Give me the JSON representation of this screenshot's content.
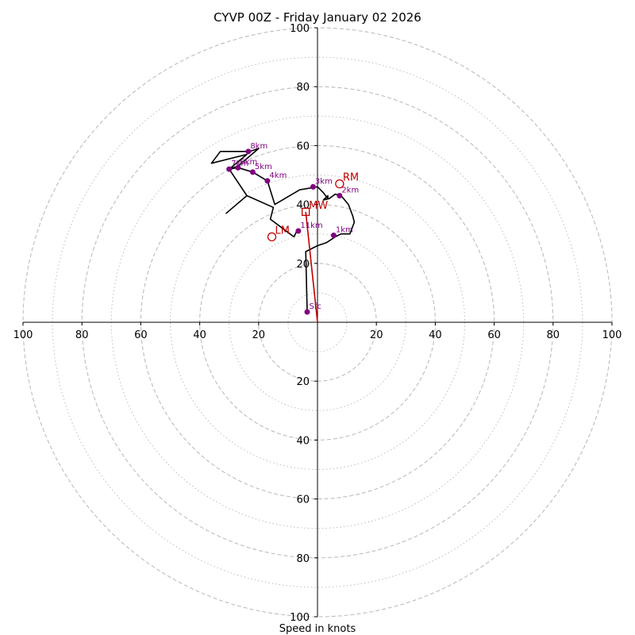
{
  "chart_data": {
    "type": "hodograph",
    "title": "CYVP 00Z - Friday January 02 2026",
    "xlabel": "Speed in knots",
    "max_speed": 100,
    "rings_major": [
      20,
      40,
      60,
      80,
      100
    ],
    "rings_minor": [
      10,
      30,
      50,
      70,
      90
    ],
    "x_tick_labels": [
      "100",
      "80",
      "60",
      "40",
      "20",
      "20",
      "40",
      "60",
      "80",
      "100"
    ],
    "y_tick_labels_upper": [
      "20",
      "40",
      "60",
      "80",
      "100"
    ],
    "y_tick_labels_lower": [
      "20",
      "40",
      "60",
      "80",
      "100"
    ],
    "hodograph_trace": [
      [
        -3.5,
        3.5
      ],
      [
        -4,
        24
      ],
      [
        0,
        26
      ],
      [
        3,
        27
      ],
      [
        6,
        29
      ],
      [
        8,
        30
      ],
      [
        11,
        30
      ],
      [
        12.5,
        34
      ],
      [
        12,
        36
      ],
      [
        10.5,
        40
      ],
      [
        8,
        43
      ],
      [
        6,
        43.5
      ],
      [
        4,
        42
      ],
      [
        2,
        41.5
      ],
      [
        3.5,
        43
      ],
      [
        3.5,
        42
      ],
      [
        2,
        44
      ],
      [
        0,
        46
      ],
      [
        -6,
        45
      ],
      [
        -14.5,
        40
      ],
      [
        -17,
        48
      ],
      [
        -22,
        51
      ],
      [
        -27,
        52.5
      ],
      [
        -30,
        52
      ],
      [
        -24,
        57
      ],
      [
        -36,
        54
      ],
      [
        -33,
        58
      ],
      [
        -23,
        58
      ],
      [
        -20,
        59
      ],
      [
        -27,
        53
      ],
      [
        -30,
        52
      ],
      [
        -24,
        43
      ],
      [
        -31,
        37
      ],
      [
        -24,
        43
      ],
      [
        -15,
        39
      ],
      [
        -16,
        35
      ],
      [
        -12,
        32
      ],
      [
        -8,
        29
      ],
      [
        -7,
        31
      ]
    ],
    "height_points": [
      {
        "label": "Sfc",
        "u": -3.5,
        "v": 3.5
      },
      {
        "label": "1km",
        "u": 5.5,
        "v": 29.5
      },
      {
        "label": "2km",
        "u": 7.5,
        "v": 43
      },
      {
        "label": "3km",
        "u": -1.5,
        "v": 46
      },
      {
        "label": "4km",
        "u": -17,
        "v": 48
      },
      {
        "label": "5km",
        "u": -22,
        "v": 51
      },
      {
        "label": "6km",
        "u": -27,
        "v": 52.5
      },
      {
        "label": "7km",
        "u": -30,
        "v": 52
      },
      {
        "label": "8km",
        "u": -23.5,
        "v": 58
      },
      {
        "label": "11km",
        "u": -6.5,
        "v": 31
      }
    ],
    "storm_motions": [
      {
        "label": "RM",
        "u": 7.5,
        "v": 47,
        "marker": "circle"
      },
      {
        "label": "LM",
        "u": -15.5,
        "v": 29,
        "marker": "circle"
      },
      {
        "label": "MW",
        "u": -4,
        "v": 37.5,
        "marker": "square"
      }
    ],
    "mean_wind_vector": {
      "u": -4,
      "v": 37.5
    },
    "colors": {
      "trace": "#000000",
      "height_points": "#800080",
      "storm_motion": "#c00000",
      "grid": "#bdbdbd",
      "axes": "#000000"
    }
  }
}
